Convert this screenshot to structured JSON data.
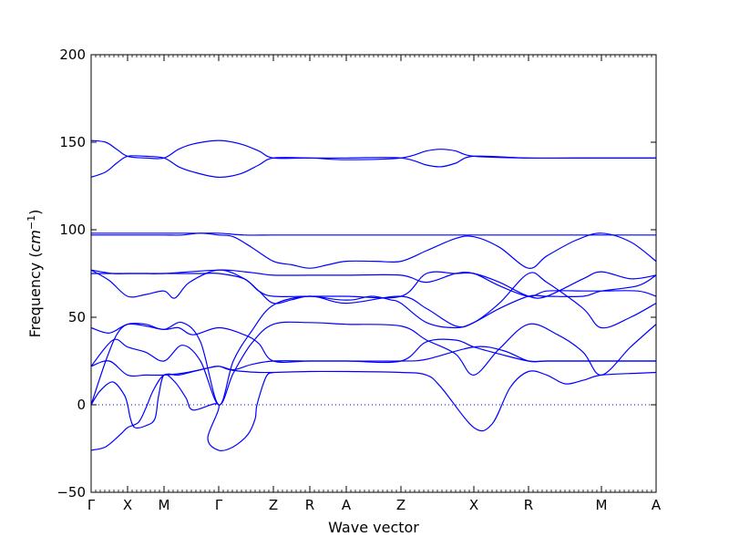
{
  "chart_data": {
    "type": "line",
    "title": "",
    "xlabel": "Wave vector",
    "ylabel_prefix": "Frequency (",
    "ylabel_unit_base": "cm",
    "ylabel_unit_exp": "−1",
    "ylabel_suffix": ")",
    "ylim": [
      -50,
      200
    ],
    "y_ticks": [
      {
        "value": -50,
        "label": "−50"
      },
      {
        "value": 0,
        "label": "0"
      },
      {
        "value": 50,
        "label": "50"
      },
      {
        "value": 100,
        "label": "100"
      },
      {
        "value": 150,
        "label": "150"
      },
      {
        "value": 200,
        "label": "200"
      }
    ],
    "xlim": [
      0,
      15.5
    ],
    "high_symmetry_points": [
      {
        "label": "Γ",
        "x": 0
      },
      {
        "label": "X",
        "x": 1
      },
      {
        "label": "M",
        "x": 2
      },
      {
        "label": "Γ",
        "x": 3.5
      },
      {
        "label": "Z",
        "x": 5
      },
      {
        "label": "R",
        "x": 6
      },
      {
        "label": "A",
        "x": 7
      },
      {
        "label": "Z",
        "x": 8.5
      },
      {
        "label": "X",
        "x": 10.5
      },
      {
        "label": "R",
        "x": 12
      },
      {
        "label": "M",
        "x": 14
      },
      {
        "label": "A",
        "x": 15.5
      }
    ],
    "zero_line": {
      "value": 0,
      "style": "dotted"
    },
    "grid": false,
    "line_color": "#0000ff",
    "series": [
      {
        "points": [
          [
            0,
            -26
          ],
          [
            0.4,
            -24
          ],
          [
            0.8,
            -17
          ],
          [
            1,
            -13
          ],
          [
            1.3,
            -10
          ],
          [
            1.5,
            -2
          ],
          [
            1.7,
            8
          ],
          [
            2,
            17
          ],
          [
            2.4,
            17
          ],
          [
            2.8,
            19
          ],
          [
            3.2,
            21
          ],
          [
            3.5,
            22
          ],
          [
            3.8,
            20
          ],
          [
            4.2,
            19
          ],
          [
            4.6,
            18.5
          ],
          [
            5,
            18.5
          ],
          [
            6,
            19
          ],
          [
            7,
            19
          ],
          [
            8.5,
            18.5
          ],
          [
            9.2,
            17
          ],
          [
            9.6,
            10
          ],
          [
            10.5,
            -13
          ],
          [
            11,
            -11
          ],
          [
            11.5,
            10
          ],
          [
            12,
            19
          ],
          [
            12.5,
            17
          ],
          [
            13,
            12
          ],
          [
            13.5,
            14
          ],
          [
            14,
            17
          ],
          [
            15,
            18
          ],
          [
            15.5,
            18.5
          ]
        ]
      },
      {
        "points": [
          [
            0,
            0
          ],
          [
            0.25,
            8
          ],
          [
            0.6,
            13
          ],
          [
            0.9,
            6
          ],
          [
            1,
            0
          ],
          [
            1.08,
            -8
          ],
          [
            1.2,
            -13
          ],
          [
            1.5,
            -12
          ],
          [
            1.75,
            -8
          ],
          [
            1.85,
            5
          ],
          [
            2,
            17
          ],
          [
            2.3,
            13
          ],
          [
            2.6,
            4
          ],
          [
            2.8,
            -3
          ],
          [
            3.5,
            0
          ],
          [
            3.2,
            -19
          ],
          [
            3.5,
            -26
          ],
          [
            3.9,
            -24
          ],
          [
            4.3,
            -17
          ],
          [
            4.5,
            -8
          ],
          [
            4.55,
            0
          ],
          [
            4.8,
            16
          ],
          [
            5,
            18.5
          ]
        ]
      },
      {
        "points": [
          [
            0,
            22
          ],
          [
            0.5,
            25
          ],
          [
            1,
            17
          ],
          [
            1.5,
            17
          ],
          [
            2,
            17
          ],
          [
            2.5,
            18
          ],
          [
            3,
            20
          ],
          [
            3.5,
            22
          ],
          [
            3.9,
            20
          ],
          [
            4.4,
            23
          ],
          [
            5,
            25
          ],
          [
            6,
            25
          ],
          [
            7,
            25
          ],
          [
            8.5,
            25
          ],
          [
            9.2,
            26
          ],
          [
            10.5,
            33
          ],
          [
            11.3,
            31
          ],
          [
            12,
            25
          ],
          [
            12.5,
            25
          ],
          [
            13.5,
            25
          ],
          [
            14,
            25
          ],
          [
            15,
            25
          ],
          [
            15.5,
            25
          ]
        ]
      },
      {
        "points": [
          [
            0,
            22
          ],
          [
            0.6,
            37
          ],
          [
            1,
            33
          ],
          [
            1.5,
            30
          ],
          [
            2,
            25
          ],
          [
            2.5,
            34
          ],
          [
            3,
            25
          ],
          [
            3.5,
            0
          ],
          [
            3.9,
            18
          ],
          [
            4.4,
            35
          ],
          [
            5,
            46
          ],
          [
            6,
            47
          ],
          [
            7,
            46
          ],
          [
            8.5,
            45
          ],
          [
            9.2,
            37
          ],
          [
            10,
            29
          ],
          [
            10.5,
            17
          ],
          [
            11.2,
            32
          ],
          [
            12,
            46
          ],
          [
            12.8,
            40
          ],
          [
            13.5,
            30
          ],
          [
            14,
            17
          ],
          [
            14.8,
            33
          ],
          [
            15.5,
            46
          ]
        ]
      },
      {
        "points": [
          [
            0,
            44
          ],
          [
            0.5,
            41
          ],
          [
            1,
            46
          ],
          [
            1.5,
            45
          ],
          [
            2,
            43
          ],
          [
            2.4,
            44
          ],
          [
            2.8,
            40
          ],
          [
            3.5,
            44
          ],
          [
            4.2,
            40
          ],
          [
            4.6,
            35
          ],
          [
            5,
            25
          ],
          [
            6,
            25
          ],
          [
            7,
            25
          ],
          [
            8.5,
            25
          ],
          [
            9.2,
            36
          ],
          [
            10,
            37
          ],
          [
            10.5,
            33
          ],
          [
            11.2,
            29
          ],
          [
            12,
            25
          ],
          [
            12.5,
            25
          ],
          [
            13.5,
            25
          ],
          [
            14,
            25
          ],
          [
            15,
            25
          ],
          [
            15.5,
            25
          ]
        ]
      },
      {
        "points": [
          [
            0,
            0
          ],
          [
            0.4,
            25
          ],
          [
            0.7,
            40
          ],
          [
            1,
            46
          ],
          [
            1.5,
            46
          ],
          [
            2,
            43
          ],
          [
            2.5,
            47
          ],
          [
            3,
            36
          ],
          [
            3.5,
            0
          ],
          [
            3.9,
            25
          ],
          [
            4.4,
            42
          ],
          [
            5,
            57
          ],
          [
            6,
            62
          ],
          [
            7,
            58
          ],
          [
            8.5,
            62
          ],
          [
            9.2,
            55
          ],
          [
            10,
            45
          ],
          [
            10.5,
            47
          ],
          [
            11.2,
            58
          ],
          [
            12,
            75
          ],
          [
            12.5,
            70
          ],
          [
            13.5,
            55
          ],
          [
            14,
            44
          ],
          [
            14.8,
            50
          ],
          [
            15.5,
            58
          ]
        ]
      },
      {
        "points": [
          [
            0,
            77
          ],
          [
            0.5,
            71
          ],
          [
            1,
            62
          ],
          [
            1.5,
            63
          ],
          [
            2,
            65
          ],
          [
            2.3,
            61
          ],
          [
            2.7,
            70
          ],
          [
            3.5,
            77
          ],
          [
            4.2,
            72
          ],
          [
            4.6,
            65
          ],
          [
            5,
            58
          ],
          [
            5.5,
            60
          ],
          [
            6,
            62
          ],
          [
            6.8,
            60
          ],
          [
            7.2,
            60
          ],
          [
            7.7,
            62
          ],
          [
            8.2,
            60
          ],
          [
            8.5,
            58
          ],
          [
            9.2,
            47
          ],
          [
            10,
            44
          ],
          [
            10.5,
            47
          ],
          [
            11.2,
            55
          ],
          [
            12,
            62
          ],
          [
            12.5,
            62
          ],
          [
            13.5,
            62
          ],
          [
            14,
            65
          ],
          [
            15,
            68
          ],
          [
            15.5,
            74
          ]
        ]
      },
      {
        "points": [
          [
            0,
            77
          ],
          [
            0.6,
            75
          ],
          [
            1,
            75
          ],
          [
            1.5,
            75
          ],
          [
            2,
            75
          ],
          [
            3.5,
            77
          ],
          [
            4.2,
            76
          ],
          [
            4.6,
            75
          ],
          [
            5,
            74
          ],
          [
            6,
            74
          ],
          [
            7,
            74
          ],
          [
            8.5,
            74
          ],
          [
            9.2,
            70
          ],
          [
            10,
            75
          ],
          [
            10.5,
            75
          ],
          [
            11.2,
            68
          ],
          [
            12,
            62
          ],
          [
            12.5,
            65
          ],
          [
            13.5,
            65
          ],
          [
            14,
            65
          ],
          [
            15,
            65
          ],
          [
            15.5,
            62
          ]
        ]
      },
      {
        "points": [
          [
            0,
            75
          ],
          [
            0.5,
            75
          ],
          [
            1,
            75
          ],
          [
            1.5,
            75
          ],
          [
            2,
            75
          ],
          [
            3,
            75
          ],
          [
            3.5,
            75
          ],
          [
            4.2,
            72
          ],
          [
            4.6,
            65
          ],
          [
            5,
            62
          ],
          [
            6,
            62
          ],
          [
            7,
            62
          ],
          [
            8.5,
            62
          ],
          [
            9.2,
            75
          ],
          [
            10,
            75
          ],
          [
            10.5,
            75
          ],
          [
            11.2,
            70
          ],
          [
            12,
            62
          ],
          [
            12.5,
            62
          ],
          [
            13.5,
            72
          ],
          [
            14,
            76
          ],
          [
            14.8,
            72
          ],
          [
            15.5,
            74
          ]
        ]
      },
      {
        "points": [
          [
            0,
            97
          ],
          [
            0.5,
            97
          ],
          [
            1,
            97
          ],
          [
            1.5,
            97
          ],
          [
            2,
            97
          ],
          [
            2.5,
            97
          ],
          [
            3,
            98
          ],
          [
            3.5,
            97
          ],
          [
            3.9,
            96
          ],
          [
            4.4,
            90
          ],
          [
            5,
            82
          ],
          [
            5.5,
            80
          ],
          [
            6,
            78
          ],
          [
            6.5,
            80
          ],
          [
            7,
            82
          ],
          [
            7.8,
            82
          ],
          [
            8.5,
            82
          ],
          [
            9.2,
            88
          ],
          [
            10,
            95
          ],
          [
            10.5,
            96
          ],
          [
            11.2,
            90
          ],
          [
            12,
            78
          ],
          [
            12.5,
            85
          ],
          [
            13.3,
            94
          ],
          [
            14,
            98
          ],
          [
            14.8,
            93
          ],
          [
            15.5,
            82
          ]
        ]
      },
      {
        "points": [
          [
            0,
            98
          ],
          [
            1,
            98
          ],
          [
            2,
            98
          ],
          [
            3,
            98
          ],
          [
            3.5,
            98
          ],
          [
            4.2,
            97
          ],
          [
            5,
            97
          ],
          [
            6,
            97
          ],
          [
            7,
            97
          ],
          [
            8.5,
            97
          ],
          [
            10.5,
            97
          ],
          [
            12,
            97
          ],
          [
            14,
            97
          ],
          [
            15.5,
            97
          ]
        ]
      },
      {
        "points": [
          [
            0,
            130
          ],
          [
            0.4,
            133
          ],
          [
            0.7,
            138
          ],
          [
            1,
            142
          ],
          [
            1.5,
            142
          ],
          [
            2,
            141
          ],
          [
            2.4,
            136
          ],
          [
            2.8,
            133
          ],
          [
            3.5,
            130
          ],
          [
            4.1,
            132
          ],
          [
            4.6,
            137
          ],
          [
            5,
            141
          ],
          [
            6,
            141
          ],
          [
            7,
            141
          ],
          [
            8.5,
            141
          ],
          [
            9.2,
            137
          ],
          [
            9.6,
            136
          ],
          [
            10,
            138
          ],
          [
            10.5,
            142
          ],
          [
            12,
            141
          ],
          [
            14,
            141
          ],
          [
            15.5,
            141
          ]
        ]
      },
      {
        "points": [
          [
            0,
            151
          ],
          [
            0.4,
            150
          ],
          [
            0.7,
            146
          ],
          [
            1,
            142
          ],
          [
            1.5,
            141
          ],
          [
            2,
            141
          ],
          [
            2.4,
            146
          ],
          [
            2.8,
            149
          ],
          [
            3.5,
            151
          ],
          [
            4.1,
            149
          ],
          [
            4.6,
            145
          ],
          [
            5,
            141
          ],
          [
            6,
            141
          ],
          [
            7,
            140
          ],
          [
            8.5,
            141
          ],
          [
            9.2,
            145
          ],
          [
            9.6,
            146
          ],
          [
            10,
            145
          ],
          [
            10.5,
            142
          ],
          [
            12,
            141
          ],
          [
            14,
            141
          ],
          [
            15.5,
            141
          ]
        ]
      }
    ]
  }
}
